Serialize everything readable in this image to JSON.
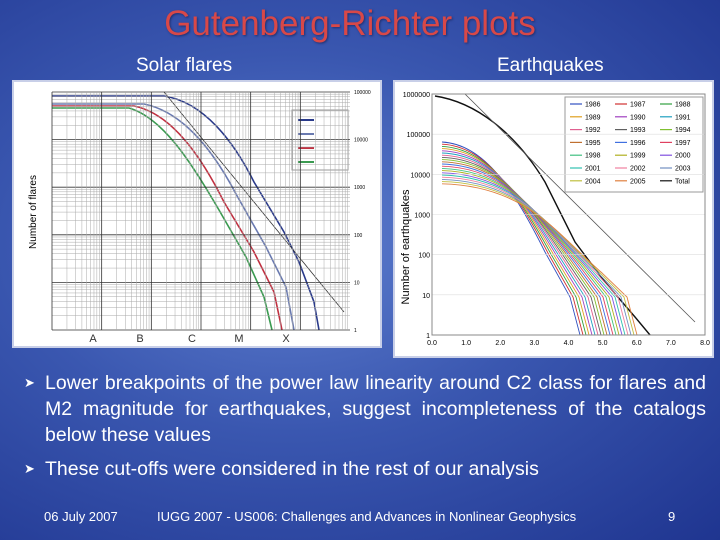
{
  "header": {
    "title": "Gutenberg-Richter plots"
  },
  "panels": {
    "left": {
      "subtitle": "Solar flares",
      "y_label": "Number of flares",
      "y_ticks": [
        "100000",
        "10000",
        "1000",
        "100",
        "10",
        "1"
      ],
      "x_classes": [
        "A",
        "B",
        "C",
        "M",
        "X"
      ]
    },
    "right": {
      "subtitle": "Earthquakes",
      "y_label": "Number of earthquakes",
      "y_ticks": [
        "1000000",
        "100000",
        "10000",
        "1000",
        "100",
        "10",
        "1"
      ],
      "x_ticks": [
        "0.0",
        "1.0",
        "2.0",
        "3.0",
        "4.0",
        "5.0",
        "6.0",
        "7.0",
        "8.0"
      ],
      "legend": [
        "1986",
        "1987",
        "1988",
        "1989",
        "1990",
        "1991",
        "1992",
        "1993",
        "1994",
        "1995",
        "1996",
        "1997",
        "1998",
        "1999",
        "2000",
        "2001",
        "2002",
        "2003",
        "2004",
        "2005",
        "Total"
      ]
    }
  },
  "bullets": [
    "Lower breakpoints of the power law linearity around C2 class for flares and M2 magnitude for earthquakes, suggest incompleteness of the catalogs below these values",
    "These cut-offs were considered in the rest of our analysis"
  ],
  "footer": {
    "date": "06 July 2007",
    "event": "IUGG 2007 - US006:  Challenges and Advances in Nonlinear Geophysics",
    "page": "9"
  }
}
